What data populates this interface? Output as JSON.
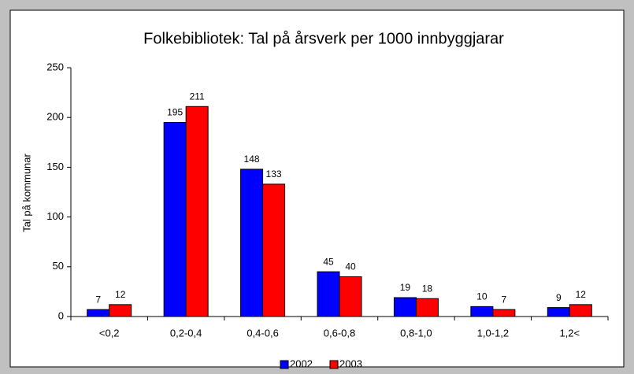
{
  "chart_data": {
    "type": "bar",
    "title": "Folkebibliotek: Tal på årsverk per 1000 innbyggjarar",
    "y_label": "Tal på kommunar",
    "categories": [
      "<0,2",
      "0,2-0,4",
      "0,4-0,6",
      "0,6-0,8",
      "0,8-1,0",
      "1,0-1,2",
      "1,2<"
    ],
    "series": [
      {
        "name": "2002",
        "color": "#0000ff",
        "values": [
          7,
          195,
          148,
          45,
          19,
          10,
          9
        ]
      },
      {
        "name": "2003",
        "color": "#ff0000",
        "values": [
          12,
          211,
          133,
          40,
          18,
          7,
          12
        ]
      }
    ],
    "ylim": [
      0,
      250
    ],
    "yticks": [
      0,
      50,
      100,
      150,
      200,
      250
    ],
    "legend": "bottom"
  }
}
